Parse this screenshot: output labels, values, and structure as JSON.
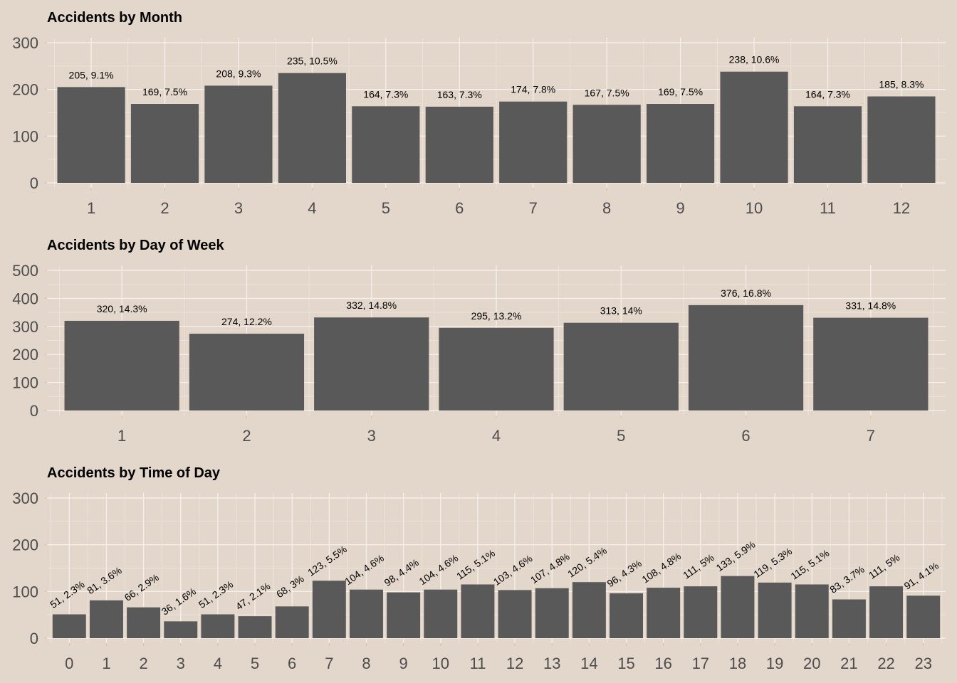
{
  "chart_data": [
    {
      "type": "bar",
      "title": "Accidents by Month",
      "xlabel": "",
      "ylabel": "",
      "categories": [
        "1",
        "2",
        "3",
        "4",
        "5",
        "6",
        "7",
        "8",
        "9",
        "10",
        "11",
        "12"
      ],
      "values": [
        205,
        169,
        208,
        235,
        164,
        163,
        174,
        167,
        169,
        238,
        164,
        185
      ],
      "labels": [
        "205, 9.1%",
        "169, 7.5%",
        "208, 9.3%",
        "235, 10.5%",
        "164, 7.3%",
        "163, 7.3%",
        "174, 7.8%",
        "167, 7.5%",
        "169, 7.5%",
        "238, 10.6%",
        "164, 7.3%",
        "185, 8.3%"
      ],
      "ylim": [
        0,
        300
      ],
      "yticks": [
        0,
        100,
        200,
        300
      ],
      "label_rotation": 0,
      "bar_color": "#595959",
      "grid": true
    },
    {
      "type": "bar",
      "title": "Accidents by Day of Week",
      "xlabel": "",
      "ylabel": "",
      "categories": [
        "1",
        "2",
        "3",
        "4",
        "5",
        "6",
        "7"
      ],
      "values": [
        320,
        274,
        332,
        295,
        313,
        376,
        331
      ],
      "labels": [
        "320, 14.3%",
        "274, 12.2%",
        "332, 14.8%",
        "295, 13.2%",
        "313, 14%",
        "376, 16.8%",
        "331, 14.8%"
      ],
      "ylim": [
        0,
        500
      ],
      "yticks": [
        0,
        100,
        200,
        300,
        400,
        500
      ],
      "label_rotation": 0,
      "bar_color": "#595959",
      "grid": true
    },
    {
      "type": "bar",
      "title": "Accidents by Time of Day",
      "xlabel": "",
      "ylabel": "",
      "categories": [
        "0",
        "1",
        "2",
        "3",
        "4",
        "5",
        "6",
        "7",
        "8",
        "9",
        "10",
        "11",
        "12",
        "13",
        "14",
        "15",
        "16",
        "17",
        "18",
        "19",
        "20",
        "21",
        "22",
        "23"
      ],
      "values": [
        51,
        81,
        66,
        36,
        51,
        47,
        68,
        123,
        104,
        98,
        104,
        115,
        103,
        107,
        120,
        96,
        108,
        111,
        133,
        119,
        115,
        83,
        111,
        91
      ],
      "labels": [
        "51, 2.3%",
        "81, 3.6%",
        "66, 2.9%",
        "36, 1.6%",
        "51, 2.3%",
        "47, 2.1%",
        "68, 3%",
        "123, 5.5%",
        "104, 4.6%",
        "98, 4.4%",
        "104, 4.6%",
        "115, 5.1%",
        "103, 4.6%",
        "107, 4.8%",
        "120, 5.4%",
        "96, 4.3%",
        "108, 4.8%",
        "111, 5%",
        "133, 5.9%",
        "119, 5.3%",
        "115, 5.1%",
        "83, 3.7%",
        "111, 5%",
        "91, 4.1%"
      ],
      "ylim": [
        0,
        300
      ],
      "yticks": [
        0,
        100,
        200,
        300
      ],
      "label_rotation": -35,
      "bar_color": "#595959",
      "grid": true
    }
  ],
  "colors": {
    "background": "#e3d6ca",
    "bar": "#595959",
    "grid": "#f4efe9"
  }
}
